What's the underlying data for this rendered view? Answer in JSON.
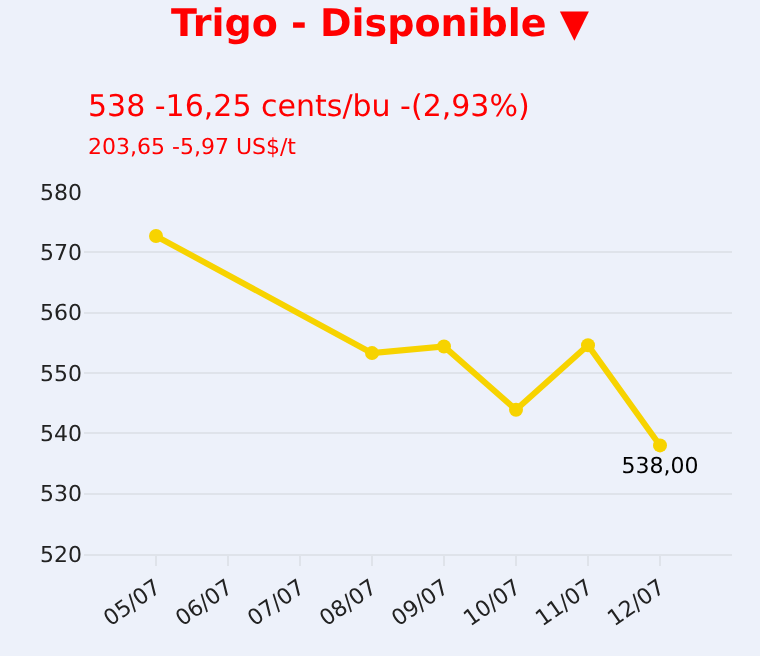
{
  "chart_data": {
    "type": "line",
    "title": "Trigo - Disponible ▼",
    "subtitle": "538 -16,25 cents/bu -(2,93%)",
    "annotations": [
      "203,65 -5,97 US$/t"
    ],
    "x": [
      "--07-05",
      "--07-08",
      "--07-09",
      "--07-10",
      "--07-11",
      "--07-12"
    ],
    "series": [
      {
        "color": "#f7d300",
        "values": [
          572.7,
          553.3,
          554.4,
          543.9,
          554.6,
          538.0
        ],
        "value_labels": [
          null,
          null,
          null,
          null,
          null,
          "538,00"
        ]
      }
    ],
    "xlim": [
      "--07-04",
      "--07-13"
    ],
    "xticks": [
      {
        "value": "--07-05",
        "label": "05/07"
      },
      {
        "value": "--07-06",
        "label": "06/07"
      },
      {
        "value": "--07-07",
        "label": "07/07"
      },
      {
        "value": "--07-08",
        "label": "08/07"
      },
      {
        "value": "--07-09",
        "label": "09/07"
      },
      {
        "value": "--07-10",
        "label": "10/07"
      },
      {
        "value": "--07-11",
        "label": "11/07"
      },
      {
        "value": "--07-12",
        "label": "12/07"
      }
    ],
    "ylim": [
      520,
      580
    ],
    "yticks": [
      520,
      530,
      540,
      550,
      560,
      570,
      580
    ],
    "grid": "y",
    "marker": "circle",
    "line_style": "solid",
    "legend": false
  }
}
